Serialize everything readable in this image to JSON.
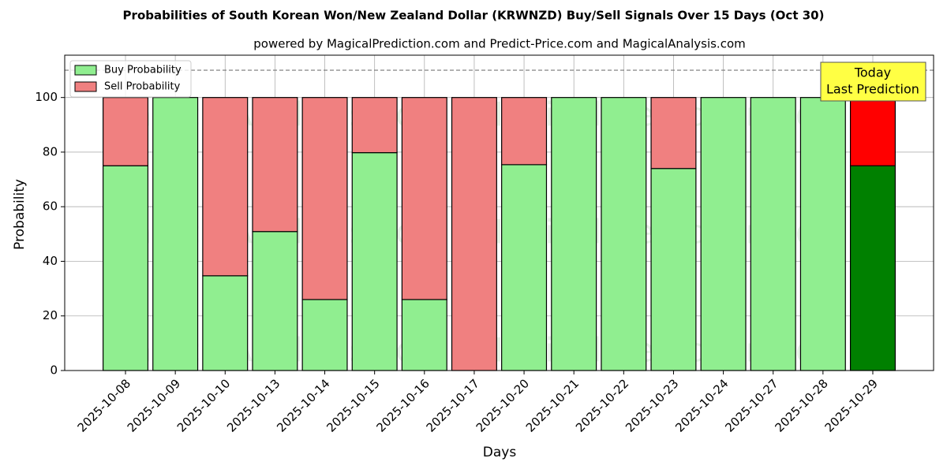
{
  "chart_data": {
    "type": "stacked_bar",
    "title": "Probabilities of South Korean Won/New Zealand Dollar (KRWNZD) Buy/Sell Signals Over 15 Days (Oct 30)",
    "subtitle": "powered by MagicalPrediction.com and Predict-Price.com and MagicalAnalysis.com",
    "x_label": "Days",
    "y_label": "Probability",
    "categories": [
      "2025-10-08",
      "2025-10-09",
      "2025-10-10",
      "2025-10-13",
      "2025-10-14",
      "2025-10-15",
      "2025-10-16",
      "2025-10-17",
      "2025-10-20",
      "2025-10-21",
      "2025-10-22",
      "2025-10-23",
      "2025-10-24",
      "2025-10-27",
      "2025-10-28",
      "2025-10-29"
    ],
    "series": [
      {
        "name": "Buy Probability",
        "color": "#90ee90",
        "last_color": "#008000",
        "values": [
          75,
          100,
          34.7,
          50.9,
          26,
          79.8,
          26,
          0,
          75.4,
          100,
          100,
          74,
          100,
          100,
          100,
          75
        ]
      },
      {
        "name": "Sell Probability",
        "color": "#f08080",
        "last_color": "#ff0000",
        "values": [
          25,
          0,
          65.3,
          49.1,
          74,
          20.2,
          74,
          100,
          24.6,
          0,
          0,
          26,
          0,
          0,
          0,
          25
        ]
      }
    ],
    "ylim": [
      0,
      115.5
    ],
    "yticks": [
      0,
      20,
      40,
      60,
      80,
      100
    ],
    "reference_line": 110,
    "grid": true,
    "legend": "upper left",
    "annotation": [
      "Today",
      "Last Prediction"
    ],
    "watermarks": [
      "MagicalAnalysis.com",
      "MagicalPrediction.com"
    ]
  }
}
